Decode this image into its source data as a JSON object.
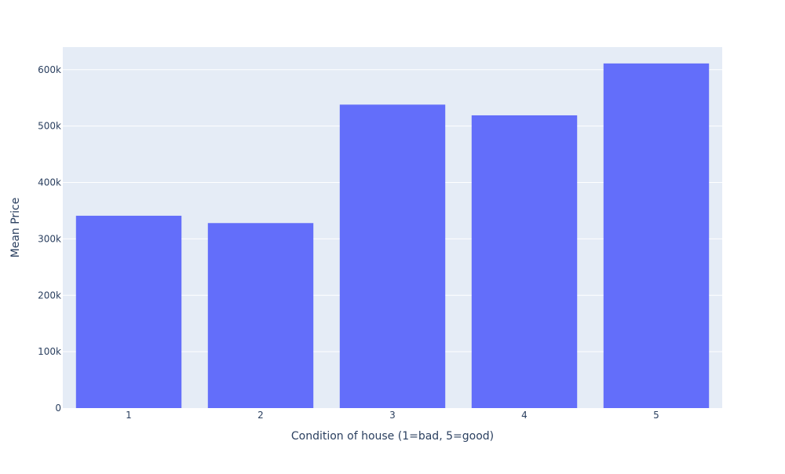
{
  "chart_data": {
    "type": "bar",
    "categories": [
      "1",
      "2",
      "3",
      "4",
      "5"
    ],
    "values": [
      341000,
      328000,
      538000,
      519000,
      611000
    ],
    "title": "",
    "xlabel": "Condition of house (1=bad, 5=good)",
    "ylabel": "Mean Price",
    "ylim": [
      0,
      640000
    ],
    "yticks": [
      0,
      100000,
      200000,
      300000,
      400000,
      500000,
      600000
    ],
    "ytick_labels": [
      "0",
      "100k",
      "200k",
      "300k",
      "400k",
      "500k",
      "600k"
    ],
    "grid": true,
    "legend": "none",
    "colors": {
      "bar": "#636efa",
      "plot_bg": "#e5ecf6",
      "grid": "#ffffff",
      "text": "#2a3f5f"
    }
  }
}
